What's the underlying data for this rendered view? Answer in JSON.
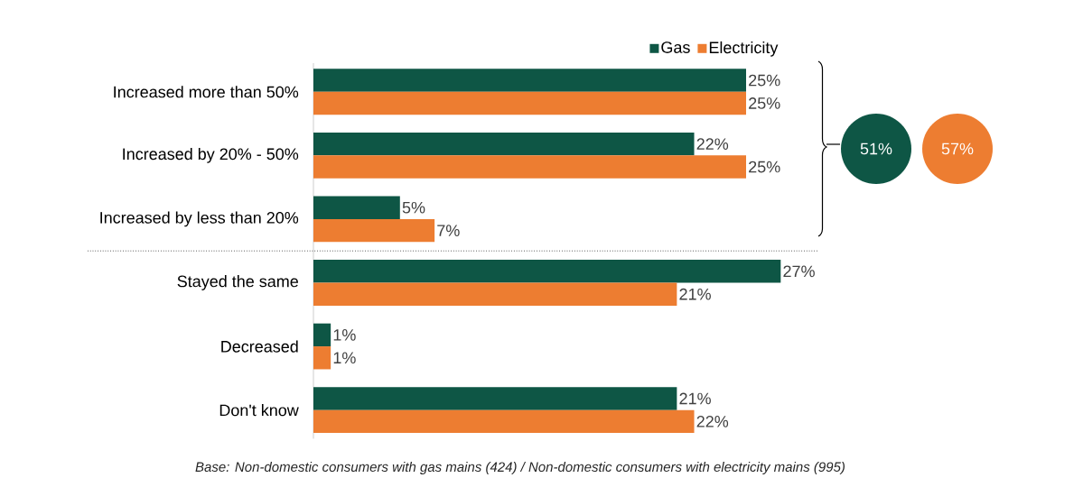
{
  "chart_data": {
    "type": "bar",
    "orientation": "horizontal",
    "categories": [
      "Increased more than 50%",
      "Increased by 20% - 50%",
      "Increased by less than 20%",
      "Stayed the same",
      "Decreased",
      "Don't know"
    ],
    "series": [
      {
        "name": "Gas",
        "color": "#0e5645",
        "values": [
          25,
          22,
          5,
          27,
          1,
          21
        ],
        "value_labels": [
          "25%",
          "22%",
          "5%",
          "27%",
          "1%",
          "21%"
        ]
      },
      {
        "name": "Electricity",
        "color": "#ed7d31",
        "values": [
          25,
          25,
          7,
          21,
          1,
          22
        ],
        "value_labels": [
          "25%",
          "25%",
          "7%",
          "21%",
          "1%",
          "22%"
        ]
      }
    ],
    "legend": "top right",
    "annotations": [
      "51%",
      "57%",
      "Base: Non-domestic consumers with gas mains (424) / Non-domestic consumers with electricity mains (995)"
    ]
  }
}
